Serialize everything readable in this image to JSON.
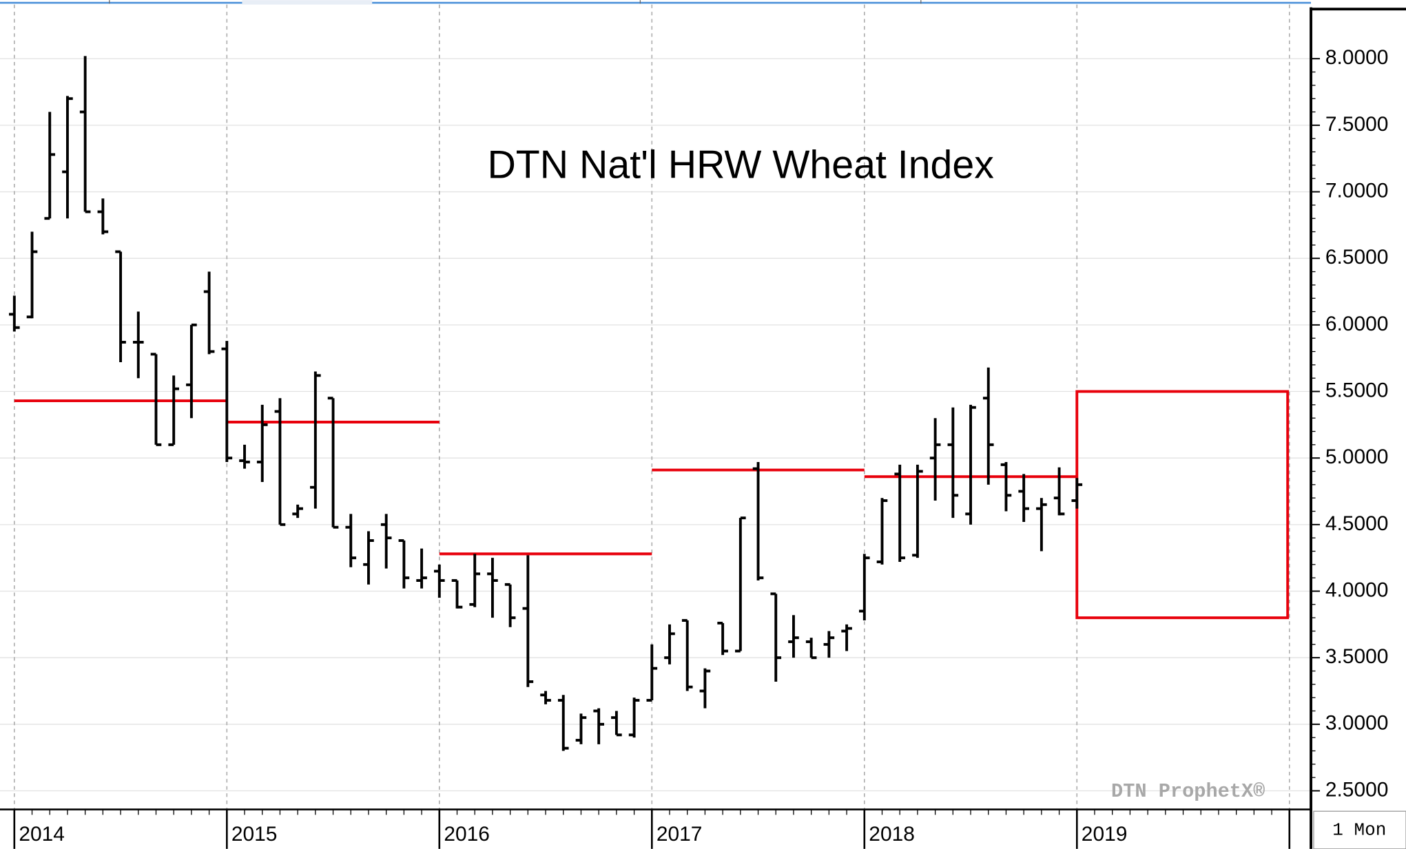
{
  "chart_data": {
    "type": "ohlc",
    "title": "DTN Nat'l HRW Wheat Index",
    "watermark": "DTN ProphetX®",
    "interval_label": "1 Mon",
    "categories": [
      "2014",
      null,
      null,
      null,
      null,
      null,
      null,
      null,
      null,
      null,
      null,
      null,
      "2015",
      null,
      null,
      null,
      null,
      null,
      null,
      null,
      null,
      null,
      null,
      null,
      "2016",
      null,
      null,
      null,
      null,
      null,
      null,
      null,
      null,
      null,
      null,
      null,
      "2017",
      null,
      null,
      null,
      null,
      null,
      null,
      null,
      null,
      null,
      null,
      null,
      "2018",
      null,
      null,
      null,
      null,
      null,
      null,
      null,
      null,
      null,
      null,
      null,
      "2019"
    ],
    "open": [
      6.08,
      6.06,
      6.8,
      7.15,
      7.6,
      6.85,
      6.55,
      5.87,
      5.78,
      5.1,
      5.55,
      6.25,
      5.82,
      4.98,
      4.97,
      5.35,
      4.58,
      4.78,
      5.45,
      4.48,
      4.2,
      4.5,
      4.38,
      4.08,
      4.15,
      4.08,
      3.9,
      4.13,
      4.05,
      3.87,
      3.22,
      3.18,
      2.88,
      3.1,
      3.05,
      2.92,
      3.18,
      3.5,
      3.78,
      3.25,
      3.76,
      3.55,
      4.92,
      3.98,
      3.62,
      3.62,
      3.6,
      3.7,
      3.85,
      4.22,
      4.88,
      4.27,
      5.0,
      5.1,
      4.58,
      5.45,
      4.95,
      4.75,
      4.62,
      4.7,
      4.68
    ],
    "high": [
      6.22,
      6.7,
      7.6,
      7.72,
      8.02,
      6.95,
      6.55,
      6.1,
      5.78,
      5.62,
      6.0,
      6.4,
      5.88,
      5.1,
      5.4,
      5.45,
      4.65,
      5.65,
      5.45,
      4.58,
      4.45,
      4.58,
      4.38,
      4.32,
      4.2,
      4.08,
      4.28,
      4.25,
      4.05,
      4.27,
      3.25,
      3.22,
      3.08,
      3.12,
      3.1,
      3.2,
      3.6,
      3.75,
      3.78,
      3.42,
      3.76,
      4.55,
      4.97,
      3.98,
      3.82,
      3.65,
      3.7,
      3.75,
      4.28,
      4.7,
      4.95,
      4.95,
      5.3,
      5.38,
      5.4,
      5.68,
      4.97,
      4.88,
      4.7,
      4.93,
      4.85
    ],
    "low": [
      5.95,
      6.05,
      6.8,
      6.8,
      6.85,
      6.68,
      5.72,
      5.6,
      5.1,
      5.1,
      5.3,
      5.78,
      4.97,
      4.92,
      4.82,
      4.5,
      4.55,
      4.62,
      4.48,
      4.18,
      4.05,
      4.17,
      4.02,
      4.02,
      3.95,
      3.87,
      3.88,
      3.8,
      3.73,
      3.28,
      3.15,
      2.8,
      2.85,
      2.85,
      2.92,
      2.9,
      3.18,
      3.45,
      3.25,
      3.12,
      3.52,
      3.55,
      4.08,
      3.32,
      3.5,
      3.5,
      3.5,
      3.55,
      3.78,
      4.2,
      4.22,
      4.25,
      4.68,
      4.55,
      4.5,
      4.8,
      4.6,
      4.52,
      4.3,
      4.57,
      4.62
    ],
    "close": [
      5.98,
      6.55,
      7.28,
      7.7,
      6.85,
      6.7,
      5.87,
      5.87,
      5.1,
      5.52,
      6.0,
      5.8,
      5.0,
      4.97,
      5.25,
      4.5,
      4.62,
      5.62,
      4.48,
      4.25,
      4.38,
      4.4,
      4.1,
      4.1,
      4.08,
      3.88,
      4.13,
      4.08,
      3.8,
      3.32,
      3.18,
      2.82,
      3.05,
      3.0,
      2.92,
      3.18,
      3.42,
      3.68,
      3.28,
      3.4,
      3.55,
      4.55,
      4.1,
      3.5,
      3.65,
      3.5,
      3.65,
      3.72,
      4.25,
      4.68,
      4.25,
      4.9,
      5.1,
      4.72,
      5.38,
      5.1,
      4.72,
      4.62,
      4.65,
      4.58,
      4.8
    ],
    "bar_color": "#000000",
    "annual_averages": [
      5.43,
      5.27,
      4.28,
      4.91,
      4.86
    ],
    "forecast_range": [
      3.8,
      5.5
    ],
    "average_color": "#e8000b",
    "ylim": [
      2.36,
      8.44
    ],
    "yticks": [
      {
        "value": 2.5,
        "label": "2.5000"
      },
      {
        "value": 3,
        "label": "3.0000"
      },
      {
        "value": 3.5,
        "label": "3.5000"
      },
      {
        "value": 4,
        "label": "4.0000"
      },
      {
        "value": 4.5,
        "label": "4.5000"
      },
      {
        "value": 5,
        "label": "5.0000"
      },
      {
        "value": 5.5,
        "label": "5.5000"
      },
      {
        "value": 6,
        "label": "6.0000"
      },
      {
        "value": 6.5,
        "label": "6.5000"
      },
      {
        "value": 7,
        "label": "7.0000"
      },
      {
        "value": 7.5,
        "label": "7.5000"
      },
      {
        "value": 8,
        "label": "8.0000"
      }
    ],
    "grid": true
  }
}
